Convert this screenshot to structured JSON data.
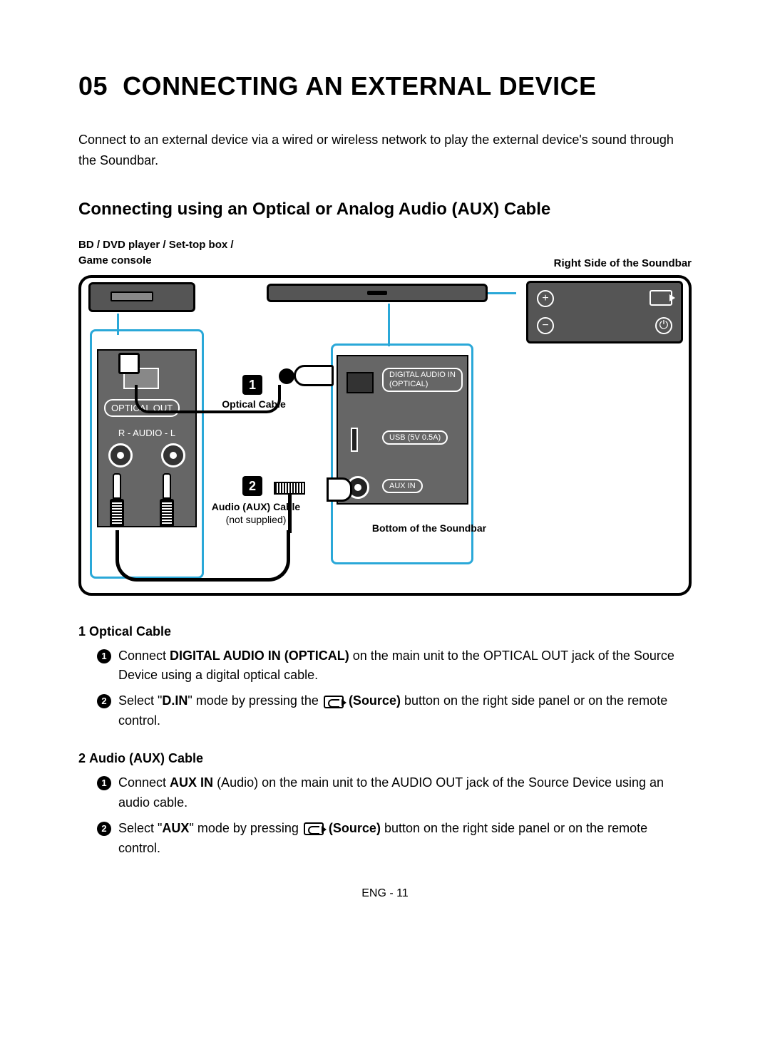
{
  "chapter": {
    "number": "05",
    "title": "CONNECTING AN EXTERNAL DEVICE"
  },
  "intro": "Connect to an external device via a wired or wireless network to play the external device's sound through the Soundbar.",
  "section_title": "Connecting using an Optical or Analog Audio (AUX) Cable",
  "diagram": {
    "top_left_label_line1": "BD / DVD player / Set-top box /",
    "top_left_label_line2": "Game console",
    "top_right_label": "Right Side of the Soundbar",
    "badge1": "1",
    "badge2": "2",
    "optical_cable_label": "Optical Cable",
    "aux_cable_label": "Audio (AUX) Cable",
    "aux_cable_sub": "(not supplied)",
    "bottom_label": "Bottom of the Soundbar",
    "source_panel": {
      "optical_out": "OPTICAL OUT",
      "audio_label": "R - AUDIO - L"
    },
    "back_panel": {
      "digital_in_line1": "DIGITAL AUDIO IN",
      "digital_in_line2": "(OPTICAL)",
      "usb": "USB (5V 0.5A)",
      "aux": "AUX IN"
    },
    "side_panel": {
      "plus": "+",
      "minus": "−",
      "power": "⏻"
    }
  },
  "instructions": {
    "section1": {
      "num": "1",
      "title": "Optical Cable",
      "step1_pre": "Connect ",
      "step1_bold": "DIGITAL AUDIO IN (OPTICAL)",
      "step1_post": " on the main unit to the OPTICAL OUT jack of the Source Device using a digital optical cable.",
      "step2_pre": "Select \"",
      "step2_bold1": "D.IN",
      "step2_mid": "\" mode by pressing the ",
      "step2_bold2": "(Source)",
      "step2_post": " button on the right side panel or on the remote control."
    },
    "section2": {
      "num": "2",
      "title": "Audio (AUX) Cable",
      "step1_pre": "Connect ",
      "step1_bold": "AUX IN",
      "step1_post": " (Audio) on the main unit to the AUDIO OUT jack of the Source Device using an audio cable.",
      "step2_pre": "Select \"",
      "step2_bold1": "AUX",
      "step2_mid": "\" mode by pressing ",
      "step2_bold2": "(Source)",
      "step2_post": " button on the right side panel or on the remote control."
    }
  },
  "footer": "ENG - 11",
  "colors": {
    "callout_border": "#2aa8d8",
    "panel_bg": "#666666",
    "device_bg": "#555555",
    "text": "#000000",
    "bg": "#ffffff"
  }
}
